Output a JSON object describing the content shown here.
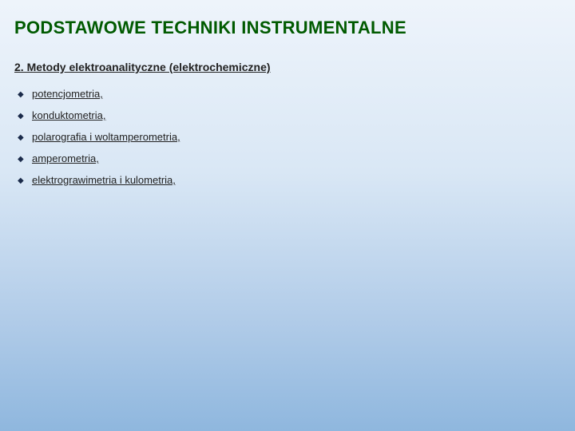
{
  "title": "PODSTAWOWE TECHNIKI INSTRUMENTALNE",
  "subtitle": "2. Metody elektroanalityczne (elektrochemiczne)",
  "items": [
    "potencjometria,",
    "konduktometria,",
    "polarografia i woltamperometria,",
    "amperometria,",
    "elektrograwimetria i kulometria,"
  ],
  "colors": {
    "title": "#005a00",
    "text": "#222222",
    "bullet": "#1a2a4a",
    "bg_top": "#eef4fb",
    "bg_bottom": "#8fb7de"
  },
  "fonts": {
    "title_size": 22,
    "subtitle_size": 14,
    "item_size": 13
  }
}
